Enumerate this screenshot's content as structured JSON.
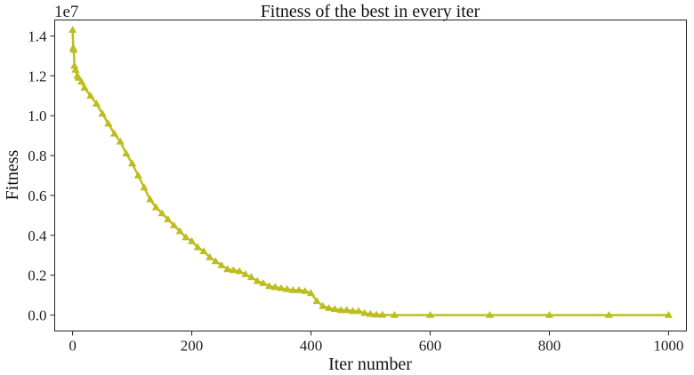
{
  "chart_data": {
    "type": "line",
    "title": "Fitness of the best in every iter",
    "xlabel": "Iter number",
    "ylabel": "Fitness",
    "y_scale_note": "1e7",
    "xlim": [
      -30,
      1030
    ],
    "ylim": [
      -0.8,
      14.8
    ],
    "y_unit_multiplier": 10000000,
    "x_ticks": [
      0,
      200,
      400,
      600,
      800,
      1000
    ],
    "y_ticks": [
      0.0,
      0.2,
      0.4,
      0.6,
      0.8,
      1.0,
      1.2,
      1.4
    ],
    "y_tick_values": [
      0,
      2,
      4,
      6,
      8,
      10,
      12,
      14
    ],
    "grid": false,
    "marker": "triangle-up",
    "colors": {
      "series": "#bdbd1f",
      "axis": "#222222"
    },
    "series": [
      {
        "x": [
          0,
          1,
          2,
          3,
          5,
          8,
          10,
          15,
          20,
          30,
          40,
          50,
          60,
          70,
          80,
          90,
          100,
          110,
          120,
          130,
          140,
          150,
          160,
          170,
          180,
          190,
          200,
          210,
          220,
          230,
          240,
          250,
          260,
          270,
          280,
          290,
          300,
          310,
          320,
          330,
          340,
          350,
          360,
          370,
          380,
          390,
          400,
          410,
          420,
          430,
          440,
          450,
          460,
          470,
          480,
          490,
          500,
          510,
          520,
          540,
          600,
          700,
          800,
          900,
          1000
        ],
        "y": [
          14.3,
          13.4,
          13.3,
          12.5,
          12.3,
          12.0,
          11.9,
          11.7,
          11.4,
          11.0,
          10.6,
          10.1,
          9.6,
          9.1,
          8.7,
          8.1,
          7.6,
          7.0,
          6.4,
          5.8,
          5.4,
          5.1,
          4.8,
          4.5,
          4.2,
          3.9,
          3.7,
          3.4,
          3.2,
          2.9,
          2.7,
          2.5,
          2.3,
          2.25,
          2.2,
          2.05,
          1.9,
          1.7,
          1.6,
          1.45,
          1.4,
          1.35,
          1.3,
          1.25,
          1.25,
          1.2,
          1.1,
          0.7,
          0.45,
          0.35,
          0.3,
          0.25,
          0.25,
          0.2,
          0.2,
          0.1,
          0.05,
          0.02,
          0.01,
          0.0,
          0.0,
          0.0,
          0.0,
          0.0,
          0.0
        ]
      }
    ]
  }
}
